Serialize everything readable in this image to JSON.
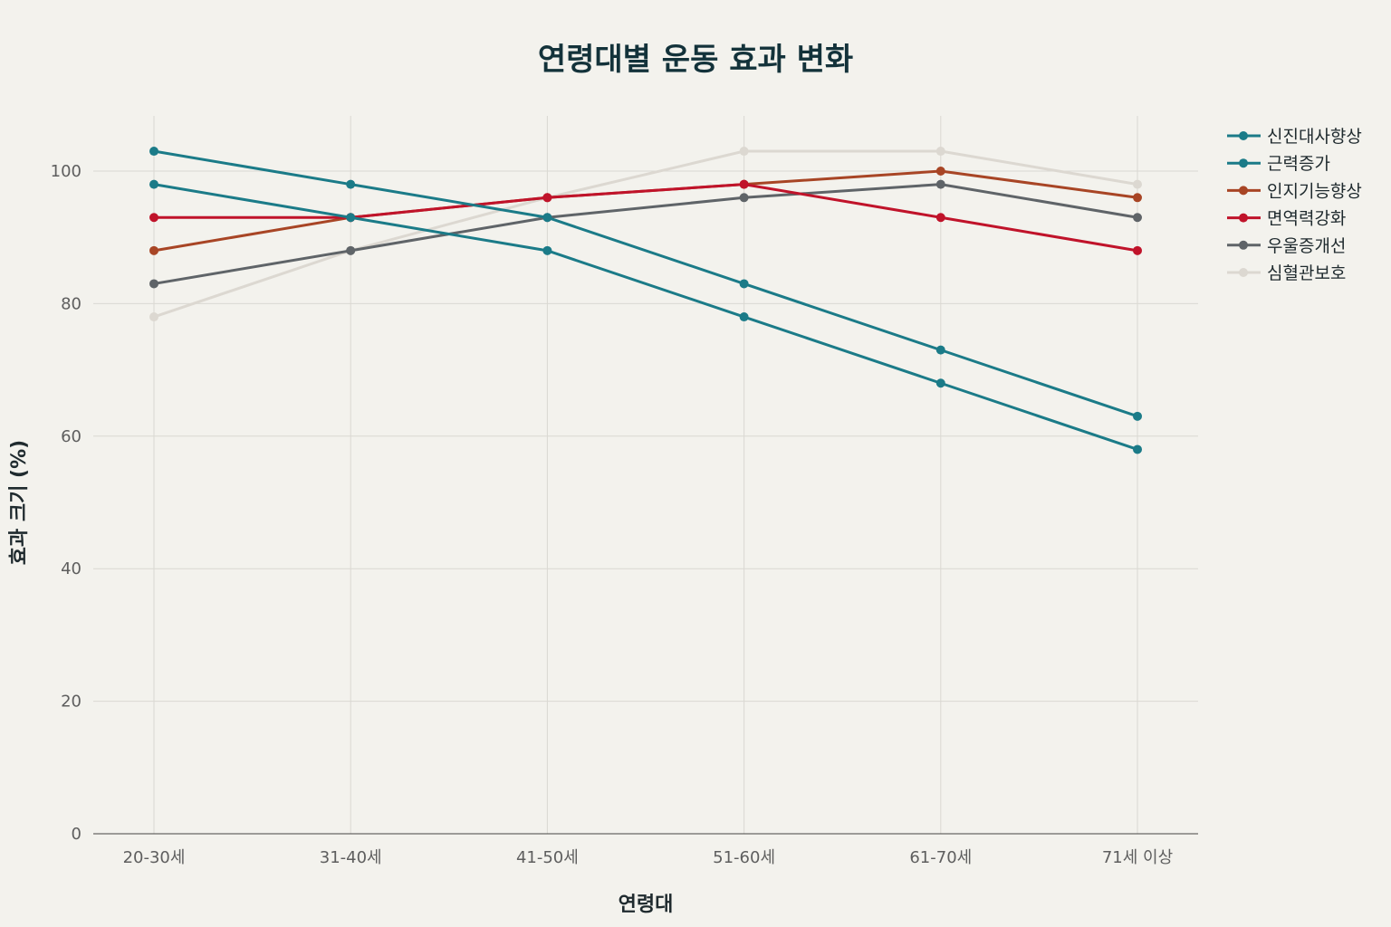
{
  "chart_data": {
    "type": "line",
    "title": "연령대별 운동 효과 변화",
    "xlabel": "연령대",
    "ylabel": "효과 크기 (%)",
    "categories": [
      "20-30세",
      "31-40세",
      "41-50세",
      "51-60세",
      "61-70세",
      "71세 이상"
    ],
    "ylim": [
      0,
      108
    ],
    "yticks": [
      0,
      20,
      40,
      60,
      80,
      100
    ],
    "grid": true,
    "legend_position": "top-right",
    "series": [
      {
        "name": "신진대사향상",
        "color": "#1b7b88",
        "values": [
          103,
          98,
          93,
          83,
          73,
          63
        ]
      },
      {
        "name": "근력증가",
        "color": "#1b7b88",
        "values": [
          98,
          93,
          88,
          78,
          68,
          58
        ]
      },
      {
        "name": "인지기능향상",
        "color": "#a84525",
        "values": [
          88,
          93,
          96,
          98,
          100,
          96
        ]
      },
      {
        "name": "면역력강화",
        "color": "#c0132a",
        "values": [
          93,
          93,
          96,
          98,
          93,
          88
        ]
      },
      {
        "name": "우울증개선",
        "color": "#5f6468",
        "values": [
          83,
          88,
          93,
          96,
          98,
          93
        ]
      },
      {
        "name": "심혈관보호",
        "color": "#dcd8d1",
        "values": [
          78,
          88,
          96,
          103,
          103,
          98
        ]
      }
    ]
  }
}
